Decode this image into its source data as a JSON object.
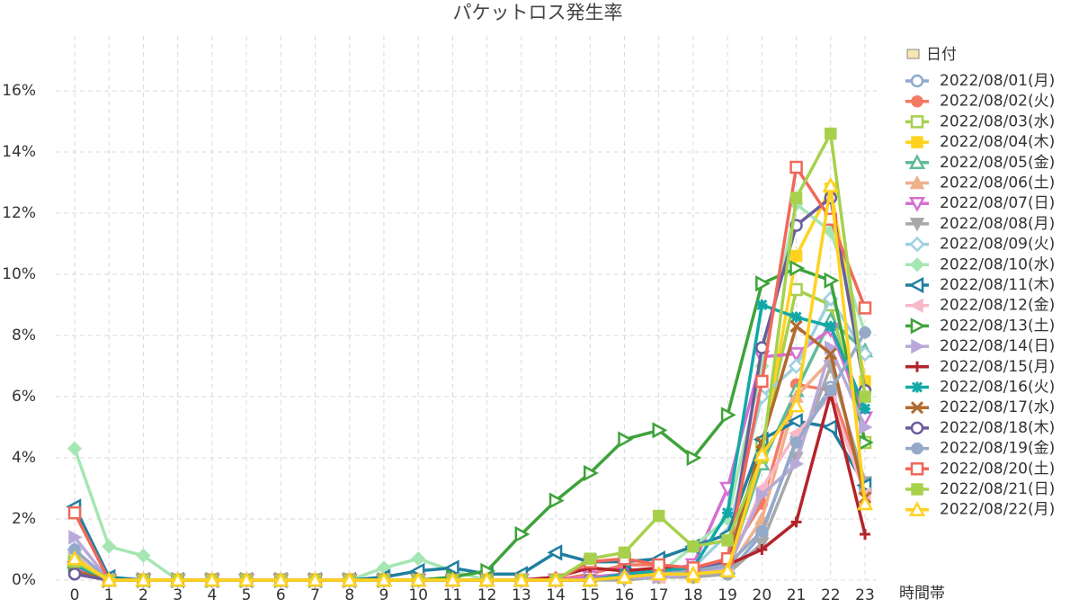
{
  "chart_data": {
    "type": "line",
    "title": "パケットロス発生率",
    "x_label": "時間帯",
    "legend_title": "日付",
    "legend_position": "right",
    "grid": true,
    "categories": [
      "0",
      "1",
      "2",
      "3",
      "4",
      "5",
      "6",
      "7",
      "8",
      "9",
      "10",
      "11",
      "12",
      "13",
      "14",
      "15",
      "16",
      "17",
      "18",
      "19",
      "20",
      "21",
      "22",
      "23"
    ],
    "ylim": [
      0,
      17.5
    ],
    "yticks": [
      {
        "value": 0,
        "label": "0%"
      },
      {
        "value": 2,
        "label": "2%"
      },
      {
        "value": 4,
        "label": "4%"
      },
      {
        "value": 6,
        "label": "6%"
      },
      {
        "value": 8,
        "label": "8%"
      },
      {
        "value": 10,
        "label": "10%"
      },
      {
        "value": 12,
        "label": "12%"
      },
      {
        "value": 14,
        "label": "14%"
      },
      {
        "value": 16,
        "label": "16%"
      }
    ],
    "series": [
      {
        "name": "2022/08/01(月)",
        "color": "#8ea8cf",
        "marker": "circle-open",
        "values": [
          0.3,
          0,
          0,
          0,
          0,
          0,
          0,
          0,
          0,
          0,
          0,
          0,
          0,
          0,
          0,
          0,
          0.1,
          0.1,
          0.1,
          0.2,
          1.5,
          4.6,
          6.3,
          3.0
        ]
      },
      {
        "name": "2022/08/02(火)",
        "color": "#f47a64",
        "marker": "circle",
        "values": [
          0.4,
          0,
          0,
          0,
          0,
          0,
          0,
          0,
          0,
          0,
          0,
          0,
          0,
          0,
          0,
          0.2,
          0.5,
          0.5,
          0.3,
          0.7,
          2.5,
          6.4,
          6.2,
          3.2
        ]
      },
      {
        "name": "2022/08/03(水)",
        "color": "#a6cf4f",
        "marker": "square-open",
        "values": [
          0.8,
          0,
          0,
          0,
          0,
          0,
          0,
          0,
          0,
          0,
          0,
          0,
          0,
          0,
          0,
          0,
          0.1,
          0.2,
          0.2,
          0.5,
          4.4,
          9.5,
          9.0,
          4.5
        ]
      },
      {
        "name": "2022/08/04(木)",
        "color": "#ffd21f",
        "marker": "square",
        "values": [
          0.5,
          0,
          0,
          0,
          0,
          0,
          0,
          0,
          0,
          0,
          0,
          0,
          0,
          0,
          0,
          0,
          0.1,
          0.1,
          0.1,
          0.3,
          4.2,
          10.6,
          12.8,
          6.5
        ]
      },
      {
        "name": "2022/08/05(金)",
        "color": "#5fbb98",
        "marker": "triangle-open",
        "values": [
          0.6,
          0,
          0,
          0,
          0,
          0,
          0,
          0,
          0,
          0,
          0,
          0,
          0,
          0,
          0,
          0,
          0.1,
          0.2,
          0.2,
          0.4,
          3.8,
          6.2,
          8.5,
          7.5
        ]
      },
      {
        "name": "2022/08/06(土)",
        "color": "#eeb08a",
        "marker": "triangle",
        "values": [
          0.5,
          0,
          0,
          0,
          0,
          0,
          0,
          0,
          0,
          0,
          0,
          0,
          0,
          0,
          0,
          0,
          0.1,
          0.1,
          0.2,
          0.3,
          2.0,
          6.0,
          7.2,
          3.0
        ]
      },
      {
        "name": "2022/08/07(日)",
        "color": "#d66fd1",
        "marker": "triangle-down-open",
        "values": [
          0.4,
          0,
          0,
          0,
          0,
          0,
          0,
          0,
          0,
          0,
          0,
          0,
          0,
          0,
          0,
          0.1,
          0.2,
          0.3,
          0.5,
          3.0,
          7.3,
          7.4,
          8.2,
          5.3
        ]
      },
      {
        "name": "2022/08/08(月)",
        "color": "#a8a8a8",
        "marker": "triangle-down",
        "values": [
          0.3,
          0,
          0,
          0,
          0,
          0,
          0,
          0,
          0,
          0,
          0,
          0,
          0,
          0,
          0,
          0,
          0,
          0.1,
          0.1,
          0.2,
          1.2,
          4.0,
          7.0,
          3.2
        ]
      },
      {
        "name": "2022/08/09(火)",
        "color": "#9fd0df",
        "marker": "diamond-open",
        "values": [
          1.0,
          0,
          0,
          0,
          0,
          0,
          0,
          0,
          0,
          0,
          0,
          0,
          0,
          0,
          0,
          0,
          0.1,
          0.2,
          0.4,
          1.5,
          6.0,
          7.0,
          9.2,
          7.4
        ]
      },
      {
        "name": "2022/08/10(水)",
        "color": "#a5e6b3",
        "marker": "diamond",
        "values": [
          4.3,
          1.1,
          0.8,
          0,
          0,
          0,
          0,
          0,
          0,
          0.4,
          0.7,
          0.3,
          0,
          0,
          0,
          0,
          0.1,
          0.2,
          1.1,
          2.0,
          7.0,
          12.3,
          11.4,
          8.1
        ]
      },
      {
        "name": "2022/08/11(木)",
        "color": "#207f9f",
        "marker": "triangle-left-open",
        "values": [
          2.4,
          0.1,
          0,
          0,
          0,
          0,
          0,
          0,
          0,
          0.1,
          0.3,
          0.4,
          0.2,
          0.2,
          0.9,
          0.6,
          0.6,
          0.7,
          1.1,
          1.5,
          4.6,
          5.2,
          5.0,
          3.1
        ]
      },
      {
        "name": "2022/08/12(金)",
        "color": "#f9b8c8",
        "marker": "triangle-left",
        "values": [
          0.9,
          0,
          0,
          0,
          0,
          0,
          0,
          0,
          0,
          0,
          0,
          0,
          0,
          0,
          0,
          0,
          0.1,
          0.1,
          0.2,
          0.3,
          3.0,
          4.8,
          6.0,
          2.8
        ]
      },
      {
        "name": "2022/08/13(土)",
        "color": "#3ea33a",
        "marker": "triangle-right-open",
        "values": [
          0.5,
          0,
          0,
          0,
          0,
          0,
          0,
          0,
          0,
          0,
          0,
          0.1,
          0.3,
          1.5,
          2.6,
          3.5,
          4.6,
          4.9,
          4.0,
          5.4,
          9.7,
          10.2,
          9.8,
          4.5
        ]
      },
      {
        "name": "2022/08/14(日)",
        "color": "#b9a9da",
        "marker": "triangle-right",
        "values": [
          1.4,
          0,
          0,
          0,
          0,
          0,
          0,
          0,
          0,
          0,
          0,
          0,
          0,
          0,
          0,
          0,
          0.1,
          0.1,
          0.2,
          0.4,
          2.8,
          3.8,
          7.6,
          5.0
        ]
      },
      {
        "name": "2022/08/15(月)",
        "color": "#b5232a",
        "marker": "plus",
        "values": [
          0.2,
          0,
          0,
          0,
          0,
          0,
          0,
          0,
          0,
          0,
          0,
          0,
          0,
          0,
          0.1,
          0.4,
          0.3,
          0.4,
          0.3,
          0.5,
          1.0,
          1.9,
          6.1,
          1.5
        ]
      },
      {
        "name": "2022/08/16(火)",
        "color": "#12a8a8",
        "marker": "star",
        "values": [
          0.5,
          0,
          0,
          0,
          0,
          0,
          0,
          0,
          0,
          0,
          0,
          0,
          0,
          0,
          0,
          0,
          0.2,
          0.3,
          0.4,
          2.2,
          9.0,
          8.6,
          8.3,
          5.6
        ]
      },
      {
        "name": "2022/08/17(水)",
        "color": "#b06a2f",
        "marker": "x",
        "values": [
          0.3,
          0,
          0,
          0,
          0,
          0,
          0,
          0,
          0,
          0,
          0,
          0,
          0,
          0,
          0,
          0,
          0.1,
          0.2,
          0.3,
          0.6,
          4.5,
          8.3,
          7.4,
          2.7
        ]
      },
      {
        "name": "2022/08/18(木)",
        "color": "#6b5c9c",
        "marker": "circle-open",
        "values": [
          0.2,
          0,
          0,
          0,
          0,
          0,
          0,
          0,
          0,
          0,
          0,
          0,
          0,
          0,
          0,
          0,
          0.1,
          0.2,
          0.3,
          0.6,
          7.6,
          11.6,
          12.5,
          6.2
        ]
      },
      {
        "name": "2022/08/19(金)",
        "color": "#95a9c9",
        "marker": "circle",
        "values": [
          1.0,
          0,
          0,
          0,
          0,
          0,
          0,
          0,
          0,
          0,
          0,
          0,
          0,
          0,
          0,
          0,
          0.1,
          0.2,
          0.3,
          0.5,
          1.6,
          4.5,
          6.2,
          8.1
        ]
      },
      {
        "name": "2022/08/20(土)",
        "color": "#f0685a",
        "marker": "square-open",
        "values": [
          2.2,
          0,
          0,
          0,
          0,
          0,
          0,
          0,
          0,
          0,
          0,
          0,
          0,
          0,
          0,
          0.6,
          0.7,
          0.5,
          0.4,
          0.7,
          6.5,
          13.5,
          11.8,
          8.9
        ]
      },
      {
        "name": "2022/08/21(日)",
        "color": "#a7d14c",
        "marker": "square",
        "values": [
          0.6,
          0,
          0,
          0,
          0,
          0,
          0,
          0,
          0,
          0,
          0,
          0,
          0,
          0,
          0,
          0.7,
          0.9,
          2.1,
          1.1,
          1.3,
          4.0,
          12.5,
          14.6,
          6.0
        ]
      },
      {
        "name": "2022/08/22(月)",
        "color": "#ffd21f",
        "marker": "triangle-open",
        "values": [
          0.7,
          0,
          0,
          0,
          0,
          0,
          0,
          0,
          0,
          0,
          0,
          0,
          0,
          0,
          0,
          0,
          0.1,
          0.2,
          0.2,
          0.3,
          4.1,
          5.7,
          12.9,
          2.5
        ]
      }
    ]
  }
}
